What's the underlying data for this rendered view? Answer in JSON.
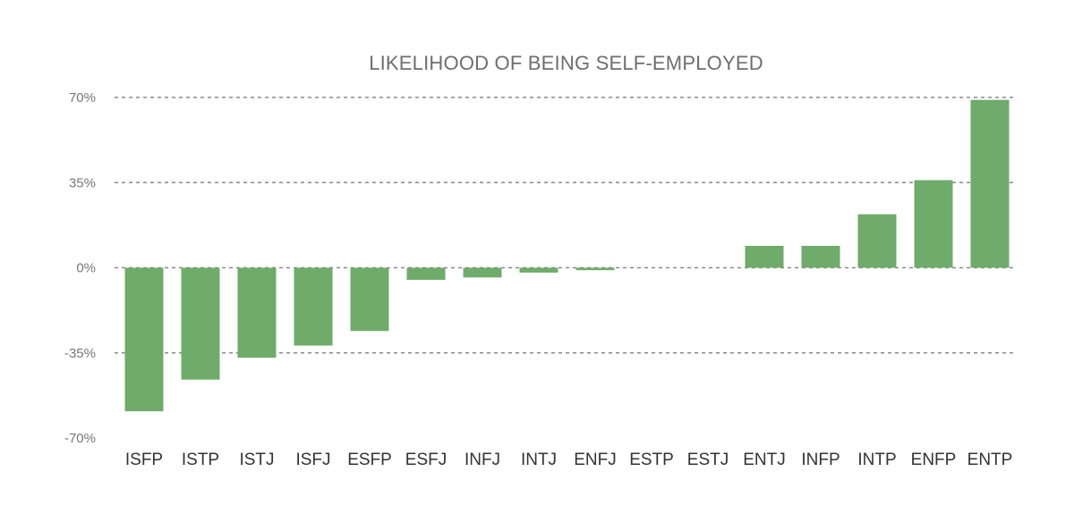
{
  "chart_data": {
    "type": "bar",
    "title": "LIKELIHOOD OF BEING SELF-EMPLOYED",
    "xlabel": "",
    "ylabel": "",
    "categories": [
      "ISFP",
      "ISTP",
      "ISTJ",
      "ISFJ",
      "ESFP",
      "ESFJ",
      "INFJ",
      "INTJ",
      "ENFJ",
      "ESTP",
      "ESTJ",
      "ENTJ",
      "INFP",
      "INTP",
      "ENFP",
      "ENTP"
    ],
    "values": [
      -59,
      -46,
      -37,
      -32,
      -26,
      -5,
      -4,
      -2,
      -1,
      0,
      0,
      9,
      9,
      22,
      36,
      69
    ],
    "ylim": [
      -70,
      70
    ],
    "yticks": [
      70,
      35,
      0,
      -35,
      -70
    ],
    "ytick_labels": [
      "70%",
      "35%",
      "0%",
      "-35%",
      "-70%"
    ],
    "grid": true,
    "bar_color": "#6fab6a",
    "grid_color": "#8a8a8a"
  }
}
